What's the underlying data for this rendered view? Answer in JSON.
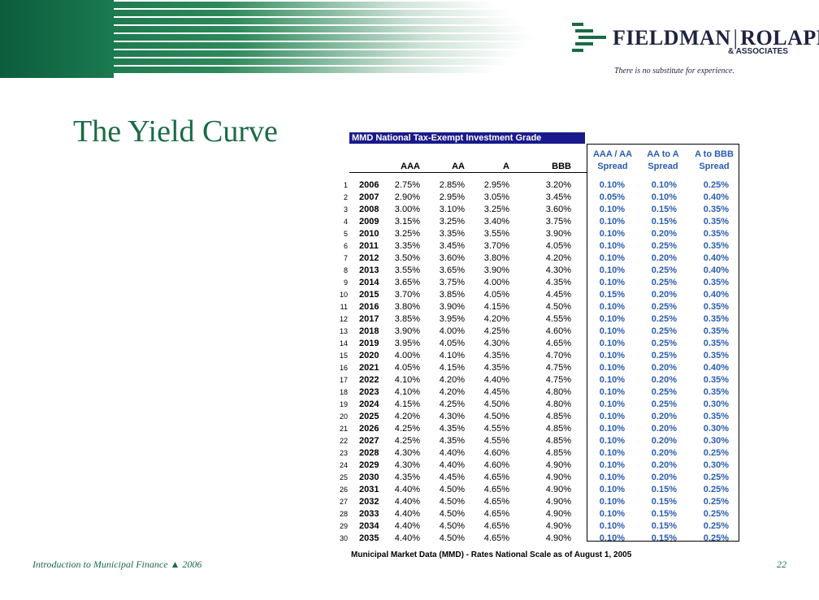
{
  "slide": {
    "title": "The Yield Curve",
    "footer_text": "Introduction to Municipal Finance",
    "footer_year": "2006",
    "page_number": "22",
    "accent_color": "#1a6b45"
  },
  "logo": {
    "name_left": "FIELDMAN",
    "name_right": "ROLAPP",
    "sub": "& ASSOCIATES",
    "tagline": "There is no substitute for experience."
  },
  "table": {
    "title": "MMD National Tax-Exempt Investment Grade",
    "headers": [
      "AAA",
      "AA",
      "A",
      "BBB"
    ],
    "spread_headers": [
      {
        "line1": "AAA / AA",
        "line2": "Spread"
      },
      {
        "line1": "AA to A",
        "line2": "Spread"
      },
      {
        "line1": "A to BBB",
        "line2": "Spread"
      }
    ],
    "source": "Municipal Market Data (MMD) - Rates National Scale as of August 1, 2005",
    "rows": [
      {
        "idx": "1",
        "year": "2006",
        "aaa": "2.75%",
        "aa": "2.85%",
        "a": "2.95%",
        "bbb": "3.20%",
        "s1": "0.10%",
        "s2": "0.10%",
        "s3": "0.25%"
      },
      {
        "idx": "2",
        "year": "2007",
        "aaa": "2.90%",
        "aa": "2.95%",
        "a": "3.05%",
        "bbb": "3.45%",
        "s1": "0.05%",
        "s2": "0.10%",
        "s3": "0.40%"
      },
      {
        "idx": "3",
        "year": "2008",
        "aaa": "3.00%",
        "aa": "3.10%",
        "a": "3.25%",
        "bbb": "3.60%",
        "s1": "0.10%",
        "s2": "0.15%",
        "s3": "0.35%"
      },
      {
        "idx": "4",
        "year": "2009",
        "aaa": "3.15%",
        "aa": "3.25%",
        "a": "3.40%",
        "bbb": "3.75%",
        "s1": "0.10%",
        "s2": "0.15%",
        "s3": "0.35%"
      },
      {
        "idx": "5",
        "year": "2010",
        "aaa": "3.25%",
        "aa": "3.35%",
        "a": "3.55%",
        "bbb": "3.90%",
        "s1": "0.10%",
        "s2": "0.20%",
        "s3": "0.35%"
      },
      {
        "idx": "6",
        "year": "2011",
        "aaa": "3.35%",
        "aa": "3.45%",
        "a": "3.70%",
        "bbb": "4.05%",
        "s1": "0.10%",
        "s2": "0.25%",
        "s3": "0.35%"
      },
      {
        "idx": "7",
        "year": "2012",
        "aaa": "3.50%",
        "aa": "3.60%",
        "a": "3.80%",
        "bbb": "4.20%",
        "s1": "0.10%",
        "s2": "0.20%",
        "s3": "0.40%"
      },
      {
        "idx": "8",
        "year": "2013",
        "aaa": "3.55%",
        "aa": "3.65%",
        "a": "3.90%",
        "bbb": "4.30%",
        "s1": "0.10%",
        "s2": "0.25%",
        "s3": "0.40%"
      },
      {
        "idx": "9",
        "year": "2014",
        "aaa": "3.65%",
        "aa": "3.75%",
        "a": "4.00%",
        "bbb": "4.35%",
        "s1": "0.10%",
        "s2": "0.25%",
        "s3": "0.35%"
      },
      {
        "idx": "10",
        "year": "2015",
        "aaa": "3.70%",
        "aa": "3.85%",
        "a": "4.05%",
        "bbb": "4.45%",
        "s1": "0.15%",
        "s2": "0.20%",
        "s3": "0.40%"
      },
      {
        "idx": "11",
        "year": "2016",
        "aaa": "3.80%",
        "aa": "3.90%",
        "a": "4.15%",
        "bbb": "4.50%",
        "s1": "0.10%",
        "s2": "0.25%",
        "s3": "0.35%"
      },
      {
        "idx": "12",
        "year": "2017",
        "aaa": "3.85%",
        "aa": "3.95%",
        "a": "4.20%",
        "bbb": "4.55%",
        "s1": "0.10%",
        "s2": "0.25%",
        "s3": "0.35%"
      },
      {
        "idx": "13",
        "year": "2018",
        "aaa": "3.90%",
        "aa": "4.00%",
        "a": "4.25%",
        "bbb": "4.60%",
        "s1": "0.10%",
        "s2": "0.25%",
        "s3": "0.35%"
      },
      {
        "idx": "14",
        "year": "2019",
        "aaa": "3.95%",
        "aa": "4.05%",
        "a": "4.30%",
        "bbb": "4.65%",
        "s1": "0.10%",
        "s2": "0.25%",
        "s3": "0.35%"
      },
      {
        "idx": "15",
        "year": "2020",
        "aaa": "4.00%",
        "aa": "4.10%",
        "a": "4.35%",
        "bbb": "4.70%",
        "s1": "0.10%",
        "s2": "0.25%",
        "s3": "0.35%"
      },
      {
        "idx": "16",
        "year": "2021",
        "aaa": "4.05%",
        "aa": "4.15%",
        "a": "4.35%",
        "bbb": "4.75%",
        "s1": "0.10%",
        "s2": "0.20%",
        "s3": "0.40%"
      },
      {
        "idx": "17",
        "year": "2022",
        "aaa": "4.10%",
        "aa": "4.20%",
        "a": "4.40%",
        "bbb": "4.75%",
        "s1": "0.10%",
        "s2": "0.20%",
        "s3": "0.35%"
      },
      {
        "idx": "18",
        "year": "2023",
        "aaa": "4.10%",
        "aa": "4.20%",
        "a": "4.45%",
        "bbb": "4.80%",
        "s1": "0.10%",
        "s2": "0.25%",
        "s3": "0.35%"
      },
      {
        "idx": "19",
        "year": "2024",
        "aaa": "4.15%",
        "aa": "4.25%",
        "a": "4.50%",
        "bbb": "4.80%",
        "s1": "0.10%",
        "s2": "0.25%",
        "s3": "0.30%"
      },
      {
        "idx": "20",
        "year": "2025",
        "aaa": "4.20%",
        "aa": "4.30%",
        "a": "4.50%",
        "bbb": "4.85%",
        "s1": "0.10%",
        "s2": "0.20%",
        "s3": "0.35%"
      },
      {
        "idx": "21",
        "year": "2026",
        "aaa": "4.25%",
        "aa": "4.35%",
        "a": "4.55%",
        "bbb": "4.85%",
        "s1": "0.10%",
        "s2": "0.20%",
        "s3": "0.30%"
      },
      {
        "idx": "22",
        "year": "2027",
        "aaa": "4.25%",
        "aa": "4.35%",
        "a": "4.55%",
        "bbb": "4.85%",
        "s1": "0.10%",
        "s2": "0.20%",
        "s3": "0.30%"
      },
      {
        "idx": "23",
        "year": "2028",
        "aaa": "4.30%",
        "aa": "4.40%",
        "a": "4.60%",
        "bbb": "4.85%",
        "s1": "0.10%",
        "s2": "0.20%",
        "s3": "0.25%"
      },
      {
        "idx": "24",
        "year": "2029",
        "aaa": "4.30%",
        "aa": "4.40%",
        "a": "4.60%",
        "bbb": "4.90%",
        "s1": "0.10%",
        "s2": "0.20%",
        "s3": "0.30%"
      },
      {
        "idx": "25",
        "year": "2030",
        "aaa": "4.35%",
        "aa": "4.45%",
        "a": "4.65%",
        "bbb": "4.90%",
        "s1": "0.10%",
        "s2": "0.20%",
        "s3": "0.25%"
      },
      {
        "idx": "26",
        "year": "2031",
        "aaa": "4.40%",
        "aa": "4.50%",
        "a": "4.65%",
        "bbb": "4.90%",
        "s1": "0.10%",
        "s2": "0.15%",
        "s3": "0.25%"
      },
      {
        "idx": "27",
        "year": "2032",
        "aaa": "4.40%",
        "aa": "4.50%",
        "a": "4.65%",
        "bbb": "4.90%",
        "s1": "0.10%",
        "s2": "0.15%",
        "s3": "0.25%"
      },
      {
        "idx": "28",
        "year": "2033",
        "aaa": "4.40%",
        "aa": "4.50%",
        "a": "4.65%",
        "bbb": "4.90%",
        "s1": "0.10%",
        "s2": "0.15%",
        "s3": "0.25%"
      },
      {
        "idx": "29",
        "year": "2034",
        "aaa": "4.40%",
        "aa": "4.50%",
        "a": "4.65%",
        "bbb": "4.90%",
        "s1": "0.10%",
        "s2": "0.15%",
        "s3": "0.25%"
      },
      {
        "idx": "30",
        "year": "2035",
        "aaa": "4.40%",
        "aa": "4.50%",
        "a": "4.65%",
        "bbb": "4.90%",
        "s1": "0.10%",
        "s2": "0.15%",
        "s3": "0.25%"
      }
    ]
  }
}
